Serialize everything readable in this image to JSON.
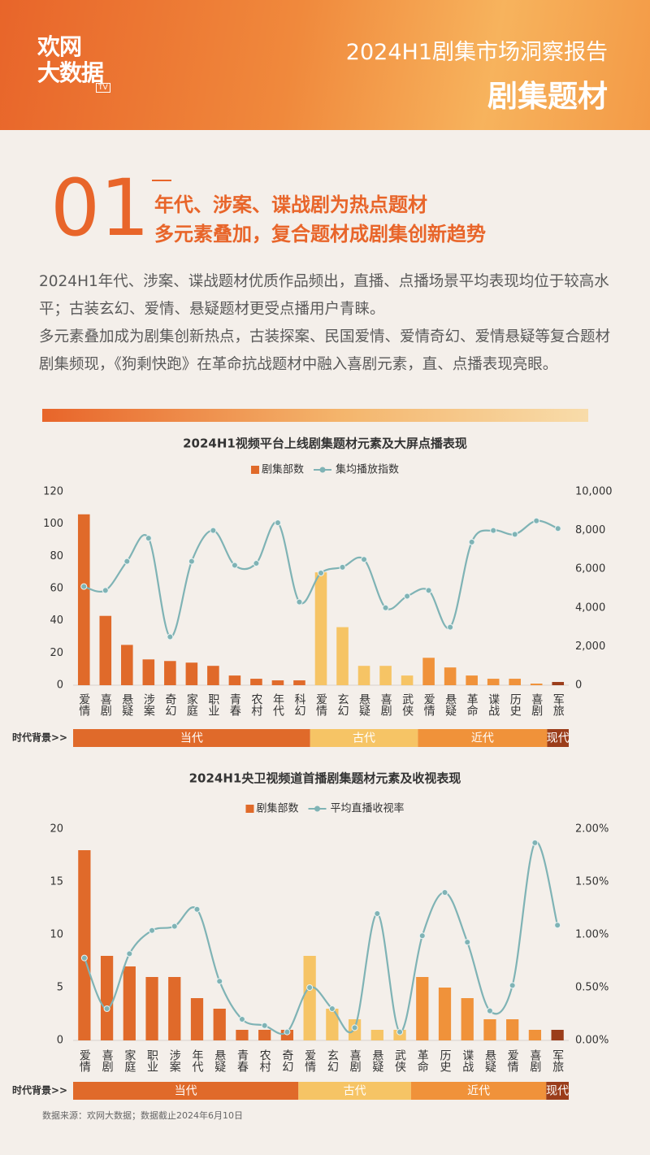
{
  "header": {
    "logo": [
      "欢网",
      "大数据"
    ],
    "logo_badge": "TV",
    "title": "2024H1剧集市场洞察报告",
    "subtitle": "剧集题材"
  },
  "section": {
    "number": "01",
    "headlines": [
      "年代、涉案、谍战剧为热点题材",
      "多元素叠加，复合题材成剧集创新趋势"
    ],
    "paragraphs": [
      "2024H1年代、涉案、谍战题材优质作品频出，直播、点播场景平均表现均位于较高水平；古装玄幻、爱情、悬疑题材更受点播用户青睐。",
      "多元素叠加成为剧集创新热点，古装探案、民国爱情、爱情奇幻、爱情悬疑等复合题材剧集频现，《狗剩快跑》在革命抗战题材中融入喜剧元素，直、点播表现亮眼。"
    ]
  },
  "chart_data": [
    {
      "type": "combo",
      "title": "2024H1视频平台上线剧集题材元素及大屏点播表现",
      "categories": [
        "爱情",
        "喜剧",
        "悬疑",
        "涉案",
        "奇幻",
        "家庭",
        "职业",
        "青春",
        "农村",
        "年代",
        "科幻",
        "爱情",
        "玄幻",
        "悬疑",
        "喜剧",
        "武侠",
        "爱情",
        "悬疑",
        "革命",
        "谍战",
        "历史",
        "喜剧",
        "军旅"
      ],
      "series": [
        {
          "name": "剧集部数",
          "type": "bar",
          "color": "#e06a2a",
          "colors": [
            "#e06a2a",
            "#e06a2a",
            "#e06a2a",
            "#e06a2a",
            "#e06a2a",
            "#e06a2a",
            "#e06a2a",
            "#e06a2a",
            "#e06a2a",
            "#e06a2a",
            "#e06a2a",
            "#f6c465",
            "#f6c465",
            "#f6c465",
            "#f6c465",
            "#f6c465",
            "#f0923a",
            "#f0923a",
            "#f0923a",
            "#f0923a",
            "#f0923a",
            "#f0923a",
            "#9b3d1a"
          ],
          "values": [
            106,
            43,
            25,
            16,
            15,
            14,
            12,
            6,
            4,
            3,
            3,
            70,
            36,
            12,
            12,
            6,
            17,
            11,
            6,
            4,
            4,
            1,
            2
          ]
        },
        {
          "name": "集均播放指数",
          "type": "line",
          "axis": "y2",
          "color": "#7fb3b5",
          "values": [
            5100,
            4900,
            6400,
            7600,
            2500,
            6400,
            8000,
            6200,
            6300,
            8400,
            4300,
            5800,
            6100,
            6500,
            4000,
            4600,
            4900,
            3000,
            7400,
            8000,
            7800,
            8500,
            8100
          ]
        }
      ],
      "ylim": [
        0,
        120
      ],
      "yticks": [
        0,
        20,
        40,
        60,
        80,
        100,
        120
      ],
      "y2lim": [
        0,
        10000
      ],
      "y2ticks": [
        0,
        {
          "value": 2000,
          "label": "2,000"
        },
        {
          "value": 4000,
          "label": "4,000"
        },
        {
          "value": 6000,
          "label": "6,000"
        },
        {
          "value": 8000,
          "label": "8,000"
        },
        {
          "value": 10000,
          "label": "10,000"
        }
      ],
      "group_label": "时代背景>>",
      "groups": [
        {
          "name": "当代",
          "color": "#e06a2a"
        },
        {
          "name": "古代",
          "color": "#f6c465"
        },
        {
          "name": "近代",
          "color": "#f0923a"
        },
        {
          "name": "现代",
          "color": "#9b3d1a"
        }
      ]
    },
    {
      "type": "combo",
      "title": "2024H1央卫视频道首播剧集题材元素及收视表现",
      "categories": [
        "爱情",
        "喜剧",
        "家庭",
        "职业",
        "涉案",
        "年代",
        "悬疑",
        "青春",
        "农村",
        "奇幻",
        "爱情",
        "玄幻",
        "喜剧",
        "悬疑",
        "武侠",
        "革命",
        "历史",
        "谍战",
        "悬疑",
        "爱情",
        "喜剧",
        "军旅"
      ],
      "series": [
        {
          "name": "剧集部数",
          "type": "bar",
          "color": "#e06a2a",
          "colors": [
            "#e06a2a",
            "#e06a2a",
            "#e06a2a",
            "#e06a2a",
            "#e06a2a",
            "#e06a2a",
            "#e06a2a",
            "#e06a2a",
            "#e06a2a",
            "#e06a2a",
            "#f6c465",
            "#f6c465",
            "#f6c465",
            "#f6c465",
            "#f6c465",
            "#f0923a",
            "#f0923a",
            "#f0923a",
            "#f0923a",
            "#f0923a",
            "#f0923a",
            "#9b3d1a"
          ],
          "values": [
            18,
            8,
            7,
            6,
            6,
            4,
            3,
            1,
            1,
            1,
            8,
            3,
            2,
            1,
            1,
            6,
            5,
            4,
            2,
            2,
            1,
            1
          ]
        },
        {
          "name": "平均直播收视率",
          "type": "line",
          "axis": "y2",
          "color": "#7fb3b5",
          "values": [
            0.78,
            0.3,
            0.82,
            1.04,
            1.08,
            1.24,
            0.56,
            0.2,
            0.14,
            0.08,
            0.5,
            0.3,
            0.12,
            1.2,
            0.08,
            0.99,
            1.4,
            0.93,
            0.28,
            0.52,
            1.87,
            1.09
          ]
        }
      ],
      "ylim": [
        0,
        20
      ],
      "yticks": [
        0,
        5,
        10,
        15,
        20
      ],
      "y2lim": [
        0,
        2
      ],
      "y2ticks": [
        {
          "value": 0,
          "label": "0.00%"
        },
        {
          "value": 0.5,
          "label": "0.50%"
        },
        {
          "value": 1,
          "label": "1.00%"
        },
        {
          "value": 1.5,
          "label": "1.50%"
        },
        {
          "value": 2,
          "label": "2.00%"
        }
      ],
      "group_label": "时代背景>>",
      "groups": [
        {
          "name": "当代",
          "color": "#e06a2a"
        },
        {
          "name": "古代",
          "color": "#f6c465"
        },
        {
          "name": "近代",
          "color": "#f0923a"
        },
        {
          "name": "现代",
          "color": "#9b3d1a"
        }
      ]
    }
  ],
  "footer": {
    "source": "数据来源：欢网大数据；数据截止2024年6月10日"
  }
}
